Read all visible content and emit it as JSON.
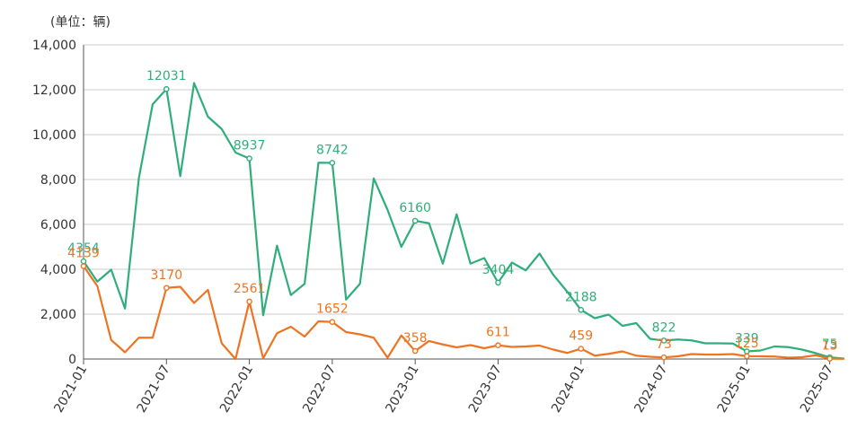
{
  "chart_data": {
    "type": "line",
    "unit_label": "(单位：辆)",
    "ylim": [
      0,
      14000
    ],
    "yticks": [
      0,
      2000,
      4000,
      6000,
      8000,
      10000,
      12000,
      14000
    ],
    "ytick_labels": [
      "0",
      "2,000",
      "4,000",
      "6,000",
      "8,000",
      "10,000",
      "12,000",
      "14,000"
    ],
    "x": [
      "2021-01",
      "2021-02",
      "2021-03",
      "2021-04",
      "2021-05",
      "2021-06",
      "2021-07",
      "2021-08",
      "2021-09",
      "2021-10",
      "2021-11",
      "2021-12",
      "2022-01",
      "2022-02",
      "2022-03",
      "2022-04",
      "2022-05",
      "2022-06",
      "2022-07",
      "2022-08",
      "2022-09",
      "2022-10",
      "2022-11",
      "2022-12",
      "2023-01",
      "2023-02",
      "2023-03",
      "2023-04",
      "2023-05",
      "2023-06",
      "2023-07",
      "2023-08",
      "2023-09",
      "2023-10",
      "2023-11",
      "2023-12",
      "2024-01",
      "2024-02",
      "2024-03",
      "2024-04",
      "2024-05",
      "2024-06",
      "2024-07",
      "2024-08",
      "2024-09",
      "2024-10",
      "2024-11",
      "2024-12",
      "2025-01",
      "2025-02",
      "2025-03",
      "2025-04",
      "2025-05",
      "2025-06",
      "2025-07",
      "2025-08"
    ],
    "xtick_labels": [
      "2021-01",
      "2021-07",
      "2022-01",
      "2022-07",
      "2023-01",
      "2023-07",
      "2024-01",
      "2024-07",
      "2025-01",
      "2025-07"
    ],
    "grid": true,
    "series": [
      {
        "color": "#2fae7c",
        "values": [
          4354,
          3450,
          3980,
          2250,
          8050,
          11350,
          12031,
          8150,
          12300,
          10800,
          10250,
          9200,
          8937,
          1950,
          5050,
          2850,
          3350,
          8750,
          8742,
          2650,
          3350,
          8050,
          6650,
          5000,
          6160,
          6050,
          4250,
          6450,
          4250,
          4500,
          3404,
          4300,
          3950,
          4700,
          3750,
          3000,
          2188,
          1820,
          1980,
          1480,
          1600,
          900,
          822,
          870,
          830,
          700,
          700,
          690,
          339,
          380,
          560,
          530,
          420,
          260,
          75,
          20
        ],
        "labeled": [
          {
            "index": 0,
            "label": "4354"
          },
          {
            "index": 6,
            "label": "12031"
          },
          {
            "index": 12,
            "label": "8937"
          },
          {
            "index": 18,
            "label": "8742"
          },
          {
            "index": 24,
            "label": "6160"
          },
          {
            "index": 30,
            "label": "3404"
          },
          {
            "index": 36,
            "label": "2188"
          },
          {
            "index": 42,
            "label": "822"
          },
          {
            "index": 48,
            "label": "339"
          },
          {
            "index": 54,
            "label": "75"
          }
        ]
      },
      {
        "color": "#ee7422",
        "values": [
          4139,
          3250,
          850,
          300,
          950,
          950,
          3170,
          3220,
          2500,
          3080,
          700,
          0,
          2561,
          30,
          1150,
          1440,
          1000,
          1680,
          1652,
          1200,
          1100,
          950,
          60,
          1050,
          358,
          800,
          650,
          520,
          620,
          480,
          611,
          540,
          560,
          600,
          420,
          270,
          459,
          150,
          230,
          340,
          150,
          100,
          73,
          120,
          220,
          200,
          200,
          220,
          125,
          120,
          110,
          60,
          80,
          170,
          13,
          10
        ],
        "labeled": [
          {
            "index": 0,
            "label": "4139"
          },
          {
            "index": 6,
            "label": "3170"
          },
          {
            "index": 12,
            "label": "2561"
          },
          {
            "index": 18,
            "label": "1652"
          },
          {
            "index": 24,
            "label": "358"
          },
          {
            "index": 30,
            "label": "611"
          },
          {
            "index": 36,
            "label": "459"
          },
          {
            "index": 42,
            "label": "73"
          },
          {
            "index": 48,
            "label": "125"
          },
          {
            "index": 54,
            "label": "13"
          }
        ]
      }
    ]
  }
}
